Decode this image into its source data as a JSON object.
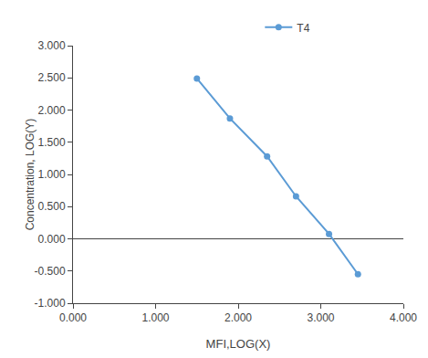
{
  "chart_data": {
    "type": "line",
    "x": [
      1.5,
      1.9,
      2.35,
      2.7,
      3.1,
      3.45
    ],
    "series": [
      {
        "name": "T4",
        "color": "#5B9BD5",
        "marker": "circle",
        "values": [
          2.49,
          1.87,
          1.28,
          0.66,
          0.075,
          -0.55
        ]
      }
    ],
    "xlabel": "MFI,LOG(X)",
    "ylabel": "Concentration, LOG(Y)",
    "xlim": [
      0.0,
      4.0
    ],
    "ylim": [
      -1.0,
      3.0
    ],
    "xticks": [
      {
        "value": 0.0,
        "label": "0.000"
      },
      {
        "value": 1.0,
        "label": "1.000"
      },
      {
        "value": 2.0,
        "label": "2.000"
      },
      {
        "value": 3.0,
        "label": "3.000"
      },
      {
        "value": 4.0,
        "label": "4.000"
      }
    ],
    "yticks": [
      {
        "value": -1.0,
        "label": "-1.000"
      },
      {
        "value": -0.5,
        "label": "-0.500"
      },
      {
        "value": 0.0,
        "label": "0.000"
      },
      {
        "value": 0.5,
        "label": "0.500"
      },
      {
        "value": 1.0,
        "label": "1.000"
      },
      {
        "value": 1.5,
        "label": "1.500"
      },
      {
        "value": 2.0,
        "label": "2.000"
      },
      {
        "value": 2.5,
        "label": "2.500"
      },
      {
        "value": 3.0,
        "label": "3.000"
      }
    ],
    "grid": false,
    "legend": "top"
  }
}
